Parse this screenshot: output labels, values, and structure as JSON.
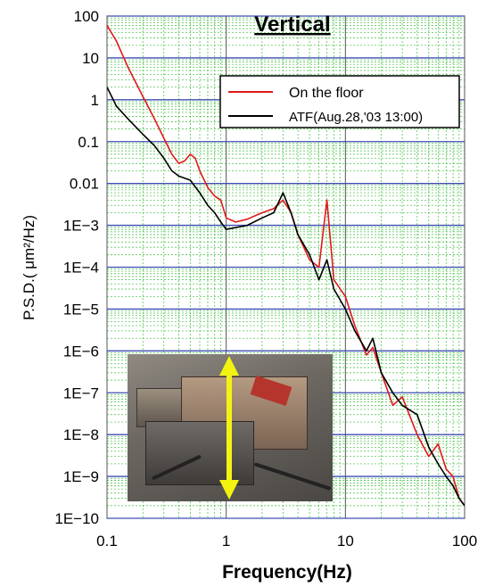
{
  "chart_data": {
    "type": "line",
    "title": "Vertical",
    "xlabel": "Frequency(Hz)",
    "ylabel": "P.S.D.( μm²/Hz)",
    "x_scale": "log",
    "y_scale": "log",
    "xlim": [
      0.1,
      100
    ],
    "ylim": [
      1e-10,
      100
    ],
    "x_tick_labels": [
      "0.1",
      "1",
      "10",
      "100"
    ],
    "x_tick_values": [
      0.1,
      1,
      10,
      100
    ],
    "y_tick_labels": [
      "100",
      "10",
      "1",
      "0.1",
      "0.01",
      "1E−3",
      "1E−4",
      "1E−5",
      "1E−6",
      "1E−7",
      "1E−8",
      "1E−9",
      "1E−10"
    ],
    "y_tick_values": [
      100,
      10,
      1,
      0.1,
      0.01,
      0.001,
      0.0001,
      1e-05,
      1e-06,
      1e-07,
      1e-08,
      1e-09,
      1e-10
    ],
    "grid": true,
    "legend_position": "top-right",
    "series": [
      {
        "name": "On the floor",
        "color": "#e0191b",
        "points": [
          [
            0.1,
            60
          ],
          [
            0.12,
            25
          ],
          [
            0.15,
            6
          ],
          [
            0.2,
            1.2
          ],
          [
            0.25,
            0.35
          ],
          [
            0.3,
            0.12
          ],
          [
            0.35,
            0.05
          ],
          [
            0.4,
            0.03
          ],
          [
            0.45,
            0.035
          ],
          [
            0.5,
            0.05
          ],
          [
            0.55,
            0.04
          ],
          [
            0.6,
            0.02
          ],
          [
            0.7,
            0.008
          ],
          [
            0.8,
            0.005
          ],
          [
            0.9,
            0.004
          ],
          [
            1.0,
            0.0015
          ],
          [
            1.2,
            0.0012
          ],
          [
            1.5,
            0.0014
          ],
          [
            2.0,
            0.002
          ],
          [
            2.5,
            0.0025
          ],
          [
            3.0,
            0.004
          ],
          [
            3.5,
            0.002
          ],
          [
            4.0,
            0.0006
          ],
          [
            5.0,
            0.00015
          ],
          [
            6.0,
            0.0001
          ],
          [
            7.0,
            0.004
          ],
          [
            8.0,
            5e-05
          ],
          [
            10.0,
            2e-05
          ],
          [
            12.0,
            4e-06
          ],
          [
            15.0,
            8e-07
          ],
          [
            17.0,
            1.2e-06
          ],
          [
            20.0,
            3e-07
          ],
          [
            25.0,
            5e-08
          ],
          [
            30.0,
            8e-08
          ],
          [
            40.0,
            1e-08
          ],
          [
            50.0,
            3e-09
          ],
          [
            60.0,
            6e-09
          ],
          [
            70.0,
            1.5e-09
          ],
          [
            80.0,
            1e-09
          ],
          [
            90.0,
            3e-10
          ],
          [
            100.0,
            2e-10
          ]
        ]
      },
      {
        "name": "ATF(Aug.28,'03 13:00)",
        "color": "#000000",
        "points": [
          [
            0.1,
            2
          ],
          [
            0.12,
            0.7
          ],
          [
            0.15,
            0.35
          ],
          [
            0.2,
            0.15
          ],
          [
            0.25,
            0.08
          ],
          [
            0.3,
            0.04
          ],
          [
            0.35,
            0.02
          ],
          [
            0.4,
            0.015
          ],
          [
            0.5,
            0.012
          ],
          [
            0.6,
            0.006
          ],
          [
            0.7,
            0.003
          ],
          [
            0.8,
            0.002
          ],
          [
            0.9,
            0.0012
          ],
          [
            1.0,
            0.0008
          ],
          [
            1.5,
            0.001
          ],
          [
            2.0,
            0.0015
          ],
          [
            2.5,
            0.002
          ],
          [
            3.0,
            0.006
          ],
          [
            3.5,
            0.002
          ],
          [
            4.0,
            0.0006
          ],
          [
            5.0,
            0.0002
          ],
          [
            6.0,
            5e-05
          ],
          [
            7.0,
            0.00015
          ],
          [
            8.0,
            3e-05
          ],
          [
            10.0,
            1e-05
          ],
          [
            12.0,
            3e-06
          ],
          [
            15.0,
            1e-06
          ],
          [
            17.0,
            2e-06
          ],
          [
            20.0,
            3e-07
          ],
          [
            25.0,
            1e-07
          ],
          [
            30.0,
            5e-08
          ],
          [
            40.0,
            3e-08
          ],
          [
            50.0,
            5e-09
          ],
          [
            60.0,
            2e-09
          ],
          [
            70.0,
            1e-09
          ],
          [
            80.0,
            6e-10
          ],
          [
            90.0,
            3e-10
          ],
          [
            100.0,
            2e-10
          ]
        ]
      }
    ]
  }
}
